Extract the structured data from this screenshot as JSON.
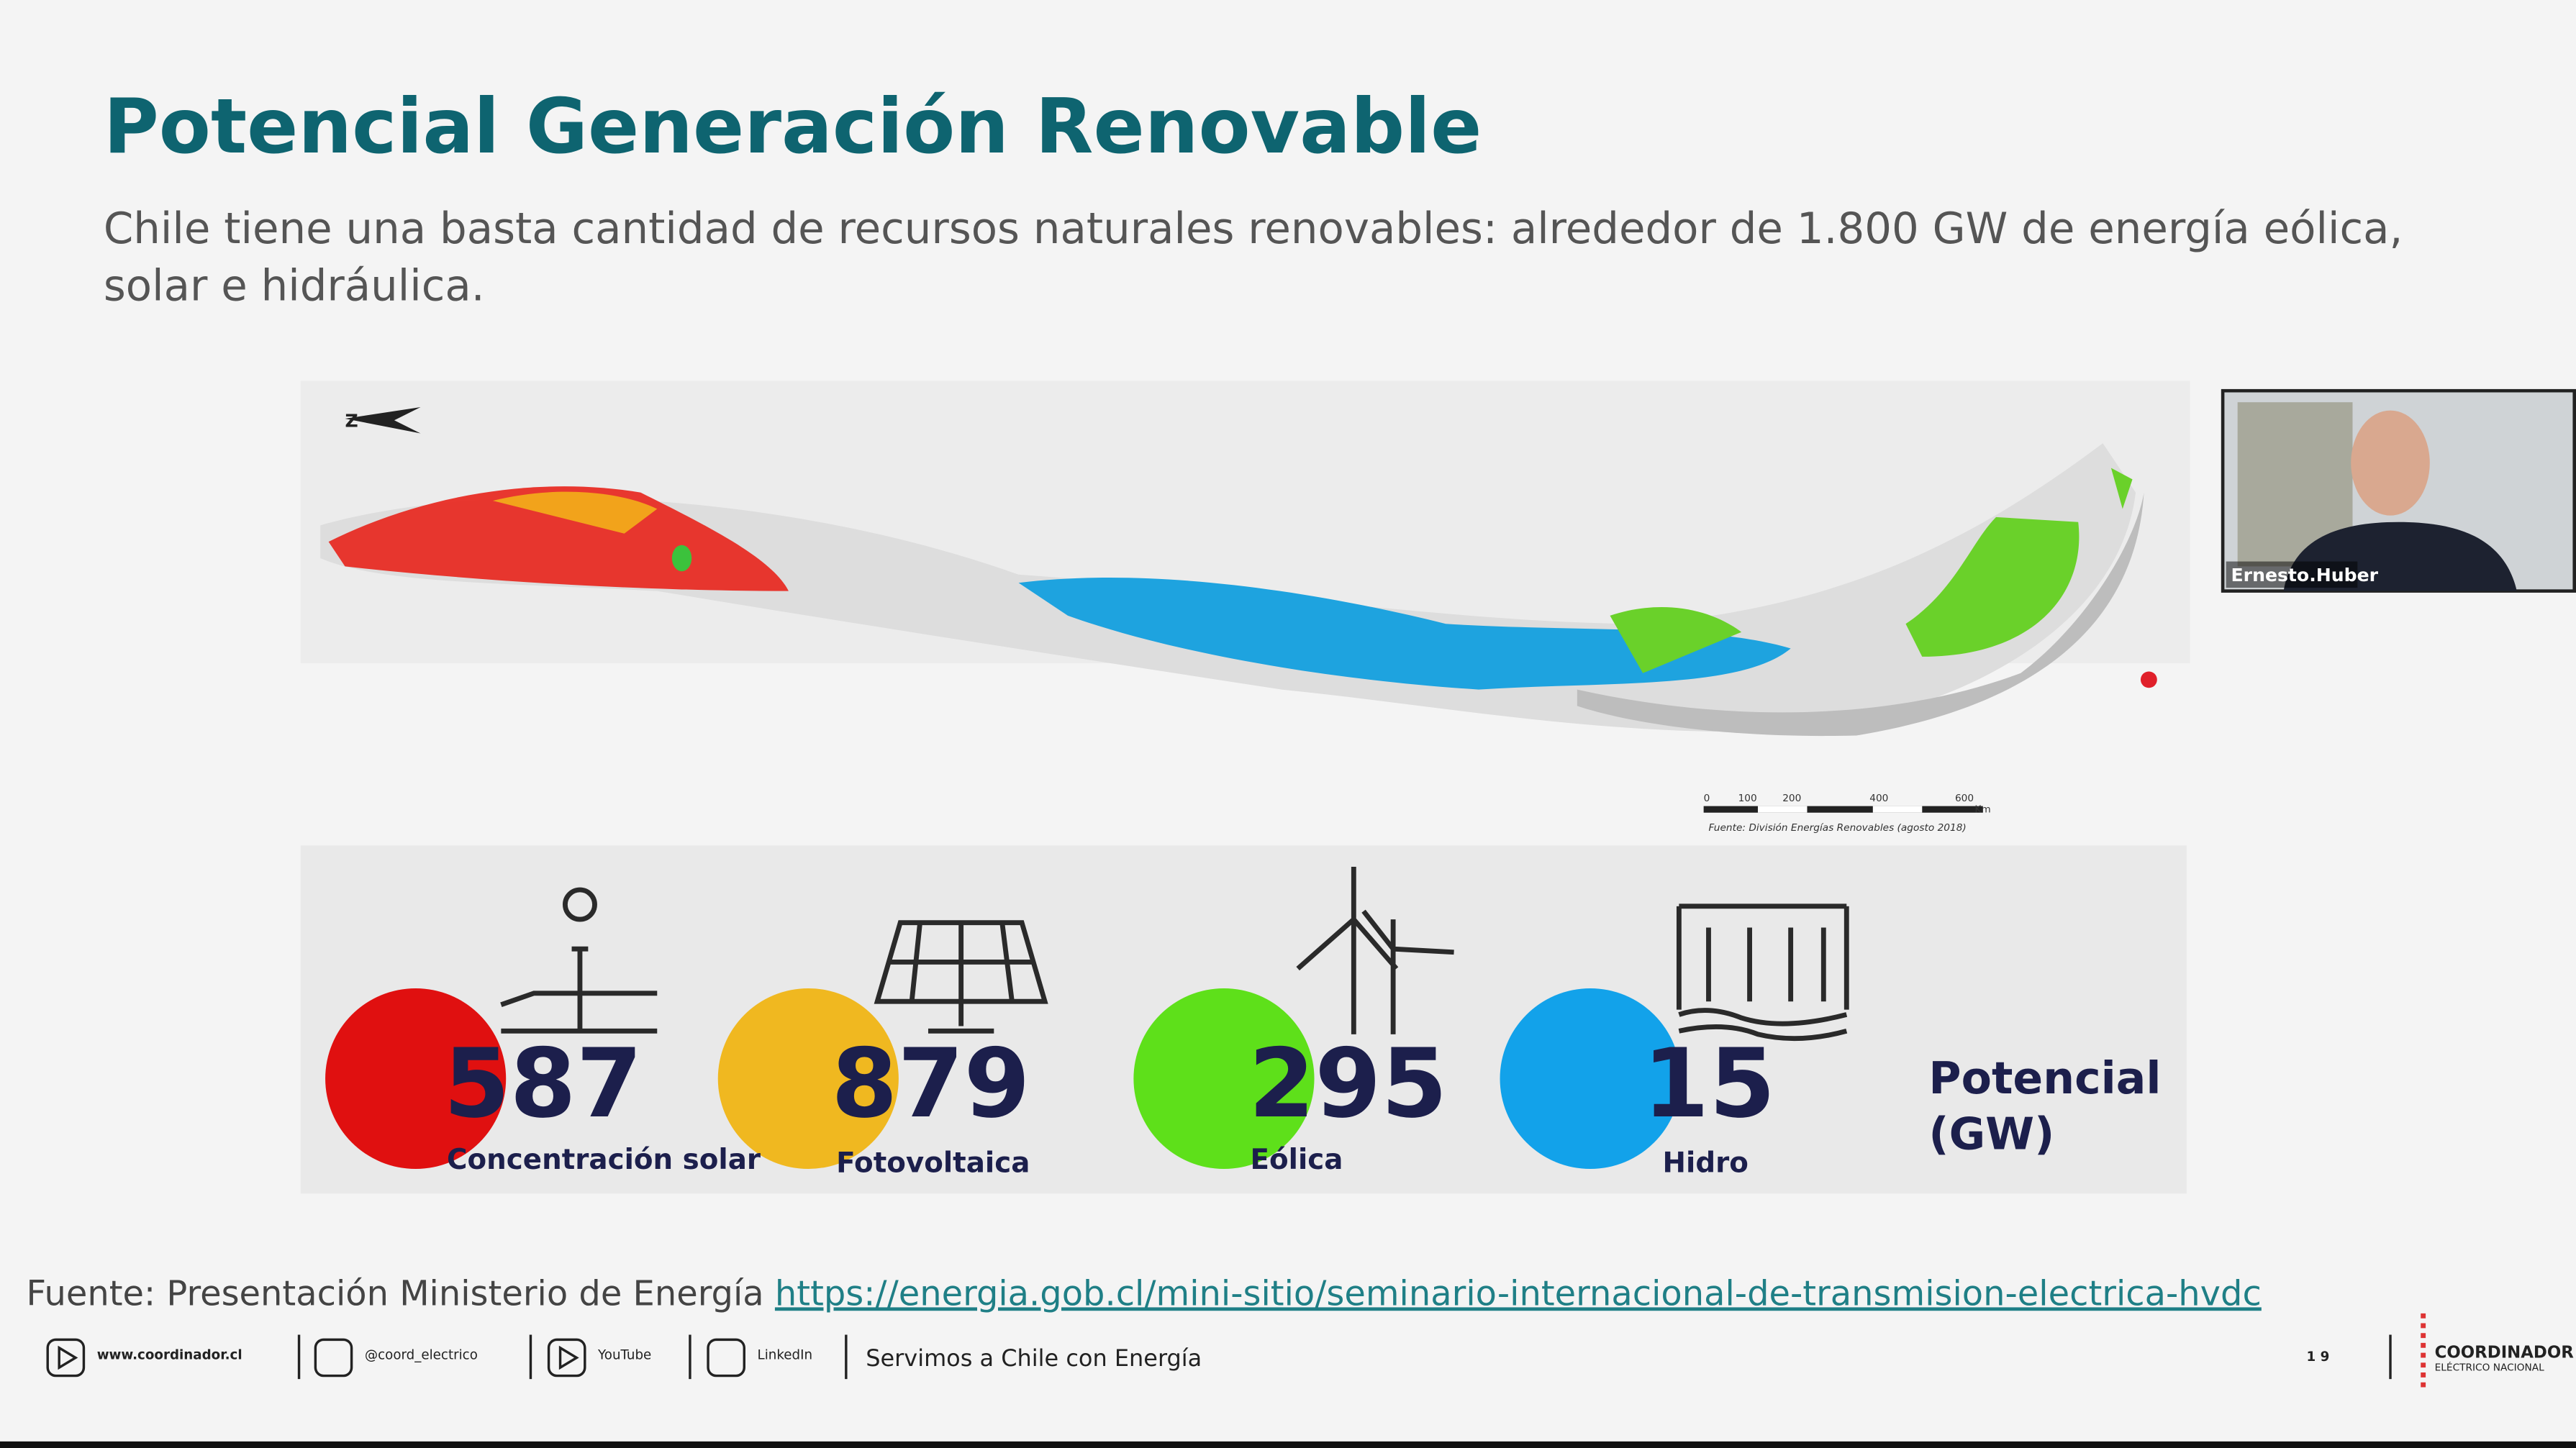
{
  "slide": {
    "title": "Potencial Generación Renovable",
    "subtitle_lines": [
      "Chile tiene una basta cantidad de recursos naturales renovables: alrededor de 1.800 GW de energía eólica,",
      "solar e hidráulica."
    ],
    "map": {
      "scale_labels": [
        "0",
        "100",
        "200",
        "400",
        "600"
      ],
      "scale_unit": "Km",
      "source": "Fuente: División Energías Renovables (agosto 2018)"
    },
    "potential": [
      {
        "value": 587,
        "label": "Concentración solar"
      },
      {
        "value": 879,
        "label": "Fotovoltaica"
      },
      {
        "value": 295,
        "label": "Eólica"
      },
      {
        "value": 15,
        "label": "Hidro"
      }
    ],
    "potential_title": [
      "Potencial",
      "(GW)"
    ],
    "source": {
      "text": "Fuente: Presentación Ministerio de Energía",
      "link": "https://energia.gob.cl/mini-sitio/seminario-internacional-de-transmision-electrica-hvdc"
    },
    "footer": {
      "links": [
        "www.coordinador.cl",
        "@coord_electrico",
        "YouTube",
        "LinkedIn"
      ],
      "tagline": "Servimos a Chile con Energía",
      "page": "1 9",
      "logo": [
        "COORDINADOR",
        "ELÉCTRICO NACIONAL"
      ]
    }
  },
  "video": {
    "participant": "Ernesto.Huber"
  }
}
